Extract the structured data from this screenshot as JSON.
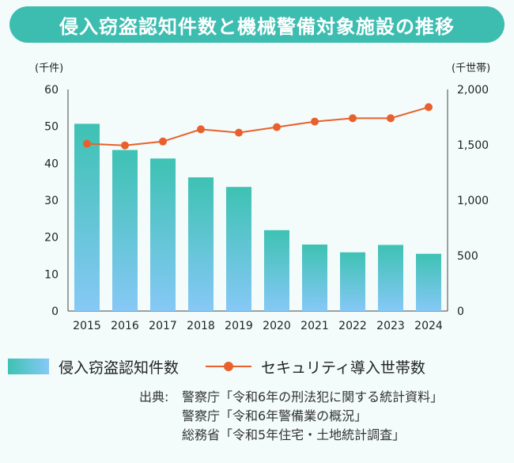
{
  "title": "侵入窃盗認知件数と機械警備対象施設の推移",
  "chart_data": {
    "type": "bar+line",
    "categories": [
      "2015",
      "2016",
      "2017",
      "2018",
      "2019",
      "2020",
      "2021",
      "2022",
      "2023",
      "2024"
    ],
    "series": [
      {
        "name": "侵入窃盗認知件数",
        "type": "bar",
        "axis": "left",
        "values": [
          50.7,
          43.6,
          41.3,
          36.2,
          33.6,
          21.9,
          18.0,
          15.9,
          17.9,
          15.5
        ]
      },
      {
        "name": "セキュリティ導入世帯数",
        "type": "line",
        "axis": "right",
        "values": [
          1510,
          1495,
          1530,
          1640,
          1610,
          1660,
          1710,
          1740,
          1740,
          1840
        ]
      }
    ],
    "y_left": {
      "unit": "(千件)",
      "ylim": [
        0,
        60
      ],
      "ticks": [
        "0",
        "10",
        "20",
        "30",
        "40",
        "50",
        "60"
      ]
    },
    "y_right": {
      "unit": "(千世帯)",
      "ylim": [
        0,
        2000
      ],
      "ticks": [
        "0",
        "500",
        "1,000",
        "1,500",
        "2,000"
      ]
    },
    "grid": false,
    "legend_position": "bottom",
    "colors": {
      "bar_top": "#3ec2b3",
      "bar_bottom": "#86c8f6",
      "line": "#e8612c"
    }
  },
  "legend": {
    "bars_label": "侵入窃盗認知件数",
    "line_label": "セキュリティ導入世帯数"
  },
  "source": {
    "label": "出典:",
    "lines": [
      "警察庁「令和6年の刑法犯に関する統計資料」",
      "警察庁「令和6年警備業の概況」",
      "総務省「令和5年住宅・土地統計調査」"
    ]
  }
}
